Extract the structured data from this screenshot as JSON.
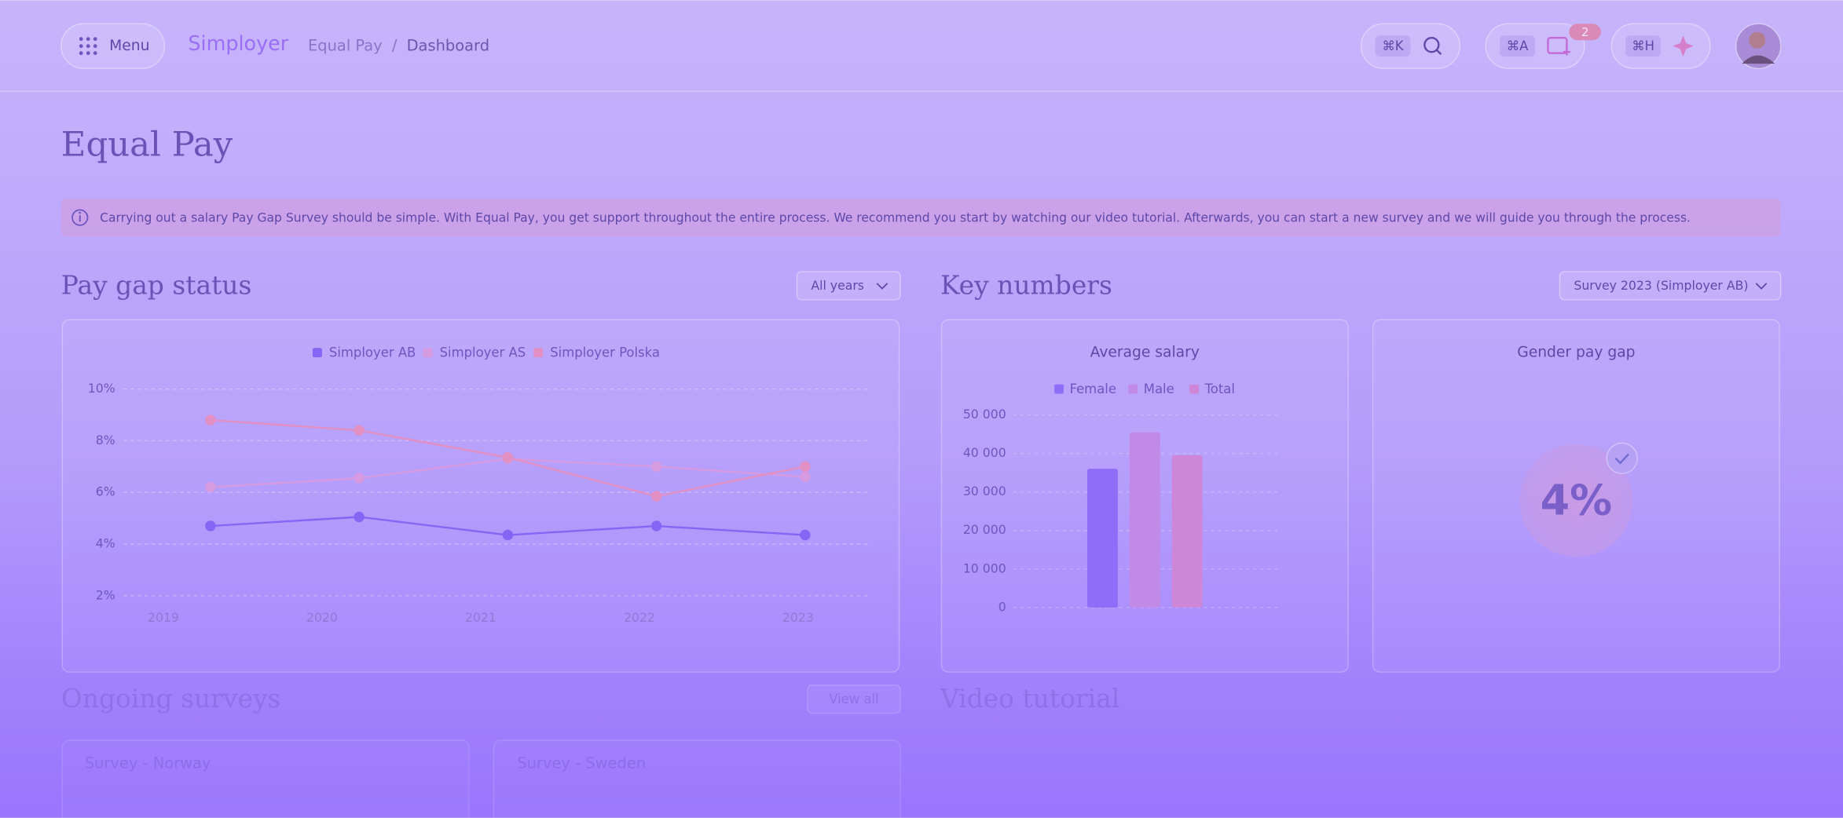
{
  "header": {
    "menu": "Menu",
    "brand": "Simployer",
    "breadcrumb": [
      "Equal Pay",
      "Dashboard"
    ],
    "breadcrumb_separator": "/",
    "shortcuts": [
      "⌘K",
      "⌘A",
      "⌘H"
    ],
    "notification_count": "2"
  },
  "page_title": "Equal Pay",
  "info_banner": "Carrying out a salary Pay Gap Survey should be simple. With Equal Pay, you get support throughout the entire process. We recommend you start by watching our video tutorial. Afterwards, you can start a new survey and we will guide you through the process.",
  "pay_gap_status": {
    "title": "Pay gap status",
    "filter": "All years",
    "chart_data": {
      "type": "line",
      "categories": [
        "2019",
        "2020",
        "2021",
        "2022",
        "2023"
      ],
      "series": [
        {
          "name": "Simployer AB",
          "color": "#8466f5",
          "values": [
            4.7,
            5.05,
            4.35,
            4.7,
            4.35
          ]
        },
        {
          "name": "Simployer AS",
          "color": "#d69ae0",
          "values": [
            6.2,
            6.55,
            7.3,
            7.0,
            6.6
          ]
        },
        {
          "name": "Simployer Polska",
          "color": "#e290c4",
          "values": [
            8.8,
            8.4,
            7.35,
            5.85,
            7.0
          ]
        }
      ],
      "ylim": [
        2,
        10
      ],
      "yticks": [
        {
          "value": 2,
          "label": "2%"
        },
        {
          "value": 4,
          "label": "4%"
        },
        {
          "value": 6,
          "label": "6%"
        },
        {
          "value": 8,
          "label": "8%"
        },
        {
          "value": 10,
          "label": "10%"
        }
      ],
      "grid": true
    }
  },
  "key_numbers": {
    "title": "Key numbers",
    "filter": "Survey 2023 (Simployer AB)",
    "average_salary": {
      "chart_data": {
        "type": "bar",
        "title": "Average salary",
        "categories": [
          null
        ],
        "series": [
          {
            "name": "Female",
            "color": "#8e6ef8",
            "values": [
              36000
            ]
          },
          {
            "name": "Male",
            "color": "#c08ae6",
            "values": [
              45500
            ]
          },
          {
            "name": "Total",
            "color": "#cd86d8",
            "values": [
              39500
            ]
          }
        ],
        "ylim": [
          0,
          50000
        ],
        "yticks": [
          0,
          {
            "value": 10000,
            "label": "10 000"
          },
          {
            "value": 20000,
            "label": "20 000"
          },
          {
            "value": 30000,
            "label": "30 000"
          },
          {
            "value": 40000,
            "label": "40 000"
          },
          {
            "value": 50000,
            "label": "50 000"
          }
        ],
        "grid": true
      }
    },
    "gender_pay_gap": {
      "title": "Gender pay gap",
      "value": 4,
      "value_label": "4%"
    }
  },
  "ongoing_surveys": {
    "title": "Ongoing surveys",
    "action": "View all",
    "items": [
      "Survey - Norway",
      "Survey - Sweden"
    ]
  },
  "video_tutorial": {
    "title": "Video tutorial"
  }
}
